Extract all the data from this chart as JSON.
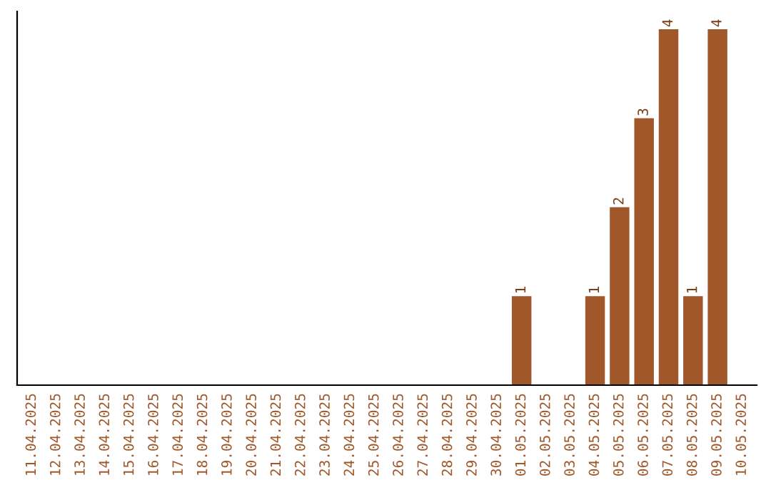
{
  "chart_data": {
    "type": "bar",
    "categories": [
      "11.04.2025",
      "12.04.2025",
      "13.04.2025",
      "14.04.2025",
      "15.04.2025",
      "16.04.2025",
      "17.04.2025",
      "18.04.2025",
      "19.04.2025",
      "20.04.2025",
      "21.04.2025",
      "22.04.2025",
      "23.04.2025",
      "24.04.2025",
      "25.04.2025",
      "26.04.2025",
      "27.04.2025",
      "28.04.2025",
      "29.04.2025",
      "30.04.2025",
      "01.05.2025",
      "02.05.2025",
      "03.05.2025",
      "04.05.2025",
      "05.05.2025",
      "06.05.2025",
      "07.05.2025",
      "08.05.2025",
      "09.05.2025",
      "10.05.2025"
    ],
    "values": [
      null,
      null,
      null,
      null,
      null,
      null,
      null,
      null,
      null,
      null,
      null,
      null,
      null,
      null,
      null,
      null,
      null,
      null,
      null,
      null,
      1,
      null,
      null,
      1,
      2,
      3,
      4,
      1,
      4,
      null
    ],
    "value_labels": [
      null,
      null,
      null,
      null,
      null,
      null,
      null,
      null,
      null,
      null,
      null,
      null,
      null,
      null,
      null,
      null,
      null,
      null,
      null,
      null,
      "1",
      null,
      null,
      "1",
      "2",
      "3",
      "4",
      "1",
      "4",
      null
    ],
    "color": "#a0582a",
    "tick_labels": "x",
    "grid": false,
    "legend": false
  }
}
